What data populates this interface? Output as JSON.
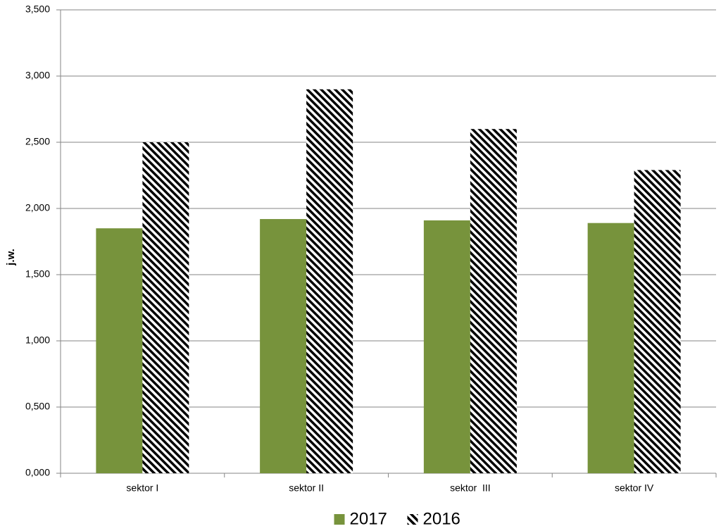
{
  "chart_data": {
    "type": "bar",
    "y_label": "j.w.",
    "categories": [
      "sektor I",
      "sektor II",
      "sektor  III",
      "sektor IV"
    ],
    "series": [
      {
        "name": "2017",
        "color": "#77933c",
        "values": [
          1.85,
          1.92,
          1.91,
          1.89
        ]
      },
      {
        "name": "2016",
        "color": "#000000",
        "pattern": "hatch",
        "values": [
          2.5,
          2.9,
          2.6,
          2.29
        ]
      }
    ],
    "ylim": [
      0,
      3.5
    ],
    "yticks": [
      {
        "value": 0,
        "label": "0,000"
      },
      {
        "value": 0.5,
        "label": "0,500"
      },
      {
        "value": 1,
        "label": "1,000"
      },
      {
        "value": 1.5,
        "label": "1,500"
      },
      {
        "value": 2,
        "label": "2,000"
      },
      {
        "value": 2.5,
        "label": "2,500"
      },
      {
        "value": 3,
        "label": "3,000"
      },
      {
        "value": 3.5,
        "label": "3,500"
      }
    ],
    "grid": true,
    "legend": "bottom"
  }
}
